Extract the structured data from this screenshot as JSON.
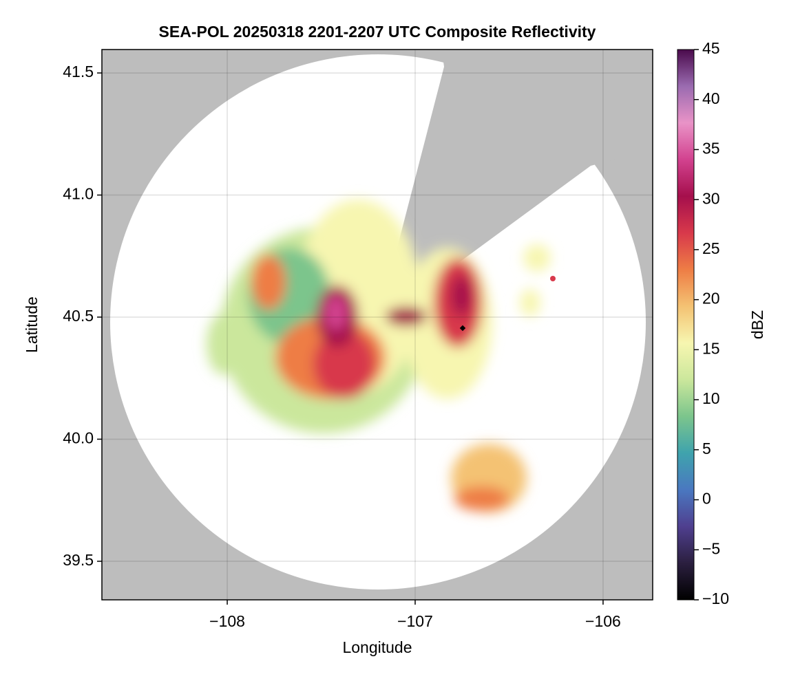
{
  "chart_data": {
    "type": "radar-map",
    "title": "SEA-POL 20250318 2201-2207 UTC Composite Reflectivity",
    "xlabel": "Longitude",
    "ylabel": "Latitude",
    "xlim": [
      -108.667,
      -105.736
    ],
    "xticks": [
      {
        "value": -108,
        "label": "−108"
      },
      {
        "value": -107,
        "label": "−107"
      },
      {
        "value": -106,
        "label": "−106"
      }
    ],
    "ylim": [
      39.342,
      41.596
    ],
    "yticks": [
      39.5,
      {
        "value": 40,
        "label": "40.0"
      },
      40.5,
      {
        "value": 41,
        "label": "41.0"
      },
      41.5
    ],
    "grid": true,
    "colorbar": {
      "label": "dBZ",
      "lim": [
        -10,
        45
      ],
      "ticks": [
        {
          "value": -10,
          "label": "−10"
        },
        {
          "value": -5,
          "label": "−5"
        },
        0,
        5,
        10,
        15,
        20,
        25,
        30,
        35,
        40,
        45
      ],
      "colors": [
        "#000000",
        "#2b1f3f",
        "#4f3f8f",
        "#4a78c0",
        "#3fa3ad",
        "#7cc58c",
        "#cbe79c",
        "#f7f6b0",
        "#f4c273",
        "#ee7d45",
        "#d8394b",
        "#a50f4c",
        "#d2428f",
        "#e993c7",
        "#9a6bb0",
        "#4a0a4c"
      ]
    }
  }
}
